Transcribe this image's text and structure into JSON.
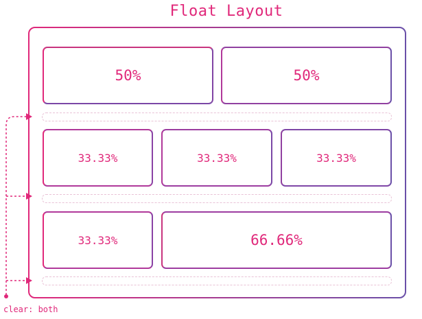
{
  "title": "Float Layout",
  "rows": [
    {
      "cells": [
        "50%",
        "50%"
      ]
    },
    {
      "cells": [
        "33.33%",
        "33.33%",
        "33.33%"
      ]
    },
    {
      "cells": [
        "33.33%",
        "66.66%"
      ]
    }
  ],
  "clear_label": "clear: both",
  "colors": {
    "accent": "#e0287a",
    "border_left": "#e0287a",
    "border_right": "#6a4fa8",
    "dashed": "#e9c2d6"
  }
}
